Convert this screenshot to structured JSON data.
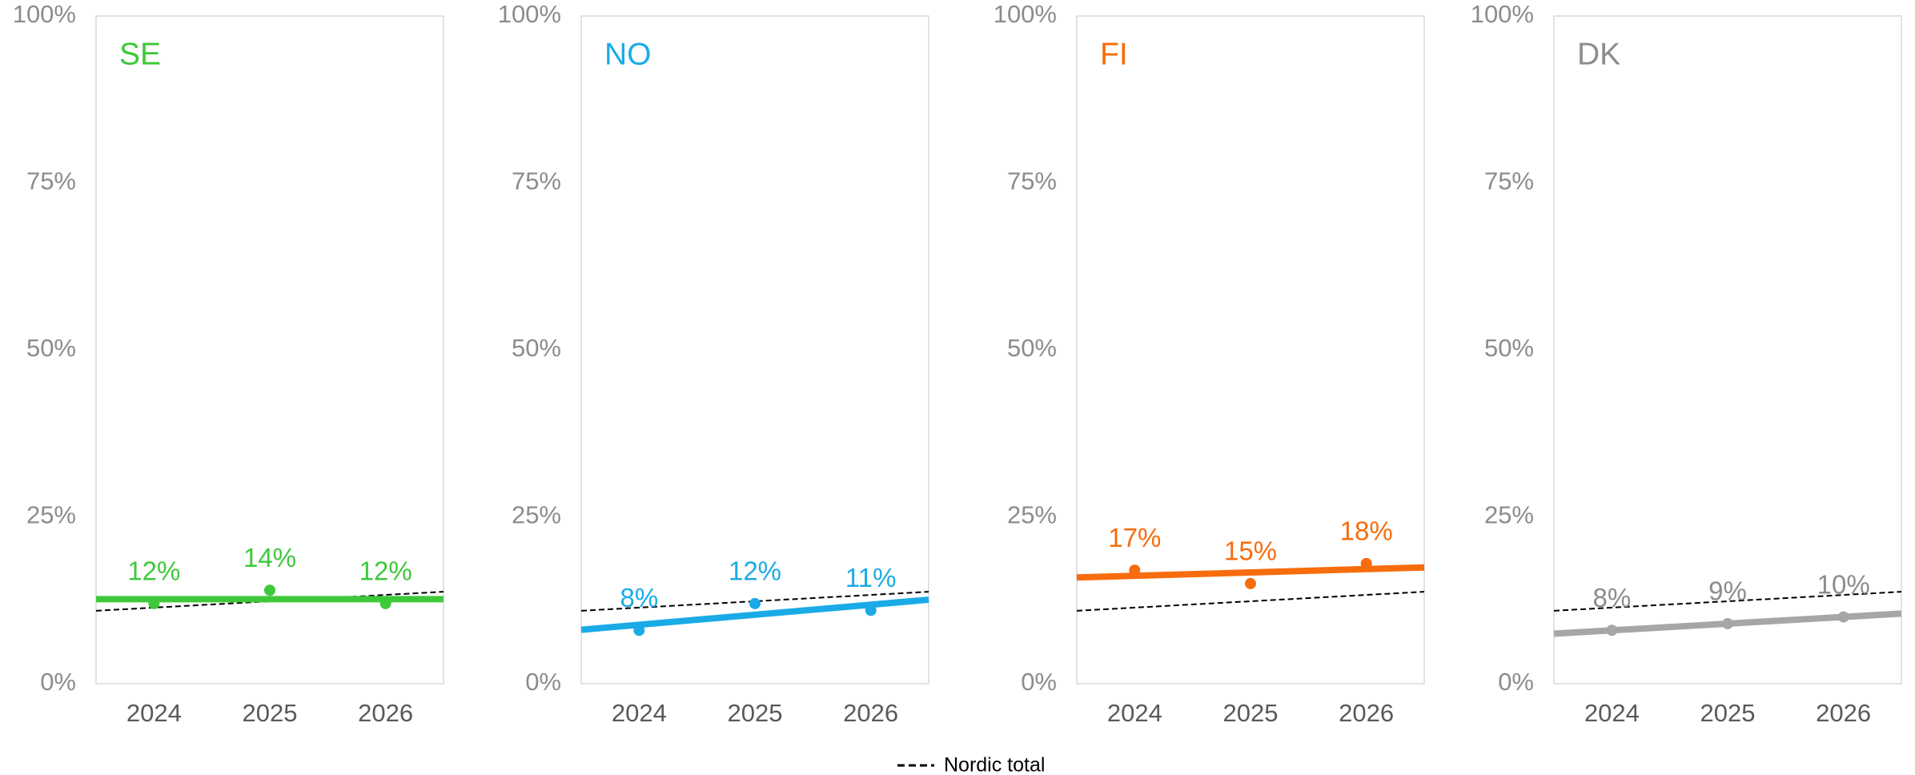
{
  "chart_data": [
    {
      "type": "scatter",
      "title": "SE",
      "categories": [
        "2024",
        "2025",
        "2026"
      ],
      "values": [
        12,
        14,
        12
      ],
      "value_labels": [
        "12%",
        "14%",
        "12%"
      ],
      "color": "#3ec93b",
      "ylim": [
        0,
        100
      ],
      "yticks": [
        {
          "value": 0,
          "label": "0%"
        },
        {
          "value": 25,
          "label": "25%"
        },
        {
          "value": 50,
          "label": "50%"
        },
        {
          "value": 75,
          "label": "75%"
        },
        {
          "value": 100,
          "label": "100%"
        }
      ],
      "trendline": true
    },
    {
      "type": "scatter",
      "title": "NO",
      "categories": [
        "2024",
        "2025",
        "2026"
      ],
      "values": [
        8,
        12,
        11
      ],
      "value_labels": [
        "8%",
        "12%",
        "11%"
      ],
      "color": "#1aabe6",
      "ylim": [
        0,
        100
      ],
      "yticks": [
        {
          "value": 0,
          "label": "0%"
        },
        {
          "value": 25,
          "label": "25%"
        },
        {
          "value": 50,
          "label": "50%"
        },
        {
          "value": 75,
          "label": "75%"
        },
        {
          "value": 100,
          "label": "100%"
        }
      ],
      "trendline": true
    },
    {
      "type": "scatter",
      "title": "FI",
      "categories": [
        "2024",
        "2025",
        "2026"
      ],
      "values": [
        17,
        15,
        18
      ],
      "value_labels": [
        "17%",
        "15%",
        "18%"
      ],
      "color": "#f76c0d",
      "ylim": [
        0,
        100
      ],
      "yticks": [
        {
          "value": 0,
          "label": "0%"
        },
        {
          "value": 25,
          "label": "25%"
        },
        {
          "value": 50,
          "label": "50%"
        },
        {
          "value": 75,
          "label": "75%"
        },
        {
          "value": 100,
          "label": "100%"
        }
      ],
      "trendline": true
    },
    {
      "type": "scatter",
      "title": "DK",
      "categories": [
        "2024",
        "2025",
        "2026"
      ],
      "values": [
        8,
        9,
        10
      ],
      "value_labels": [
        "8%",
        "9%",
        "10%"
      ],
      "color": "#a6a6a6",
      "label_color": "#8c8c8c",
      "ylim": [
        0,
        100
      ],
      "yticks": [
        {
          "value": 0,
          "label": "0%"
        },
        {
          "value": 25,
          "label": "25%"
        },
        {
          "value": 50,
          "label": "50%"
        },
        {
          "value": 75,
          "label": "75%"
        },
        {
          "value": 100,
          "label": "100%"
        }
      ],
      "trendline": true
    }
  ],
  "reference": {
    "name": "Nordic total",
    "values": [
      11.4,
      12.35,
      13.3
    ],
    "color": "#000000"
  }
}
